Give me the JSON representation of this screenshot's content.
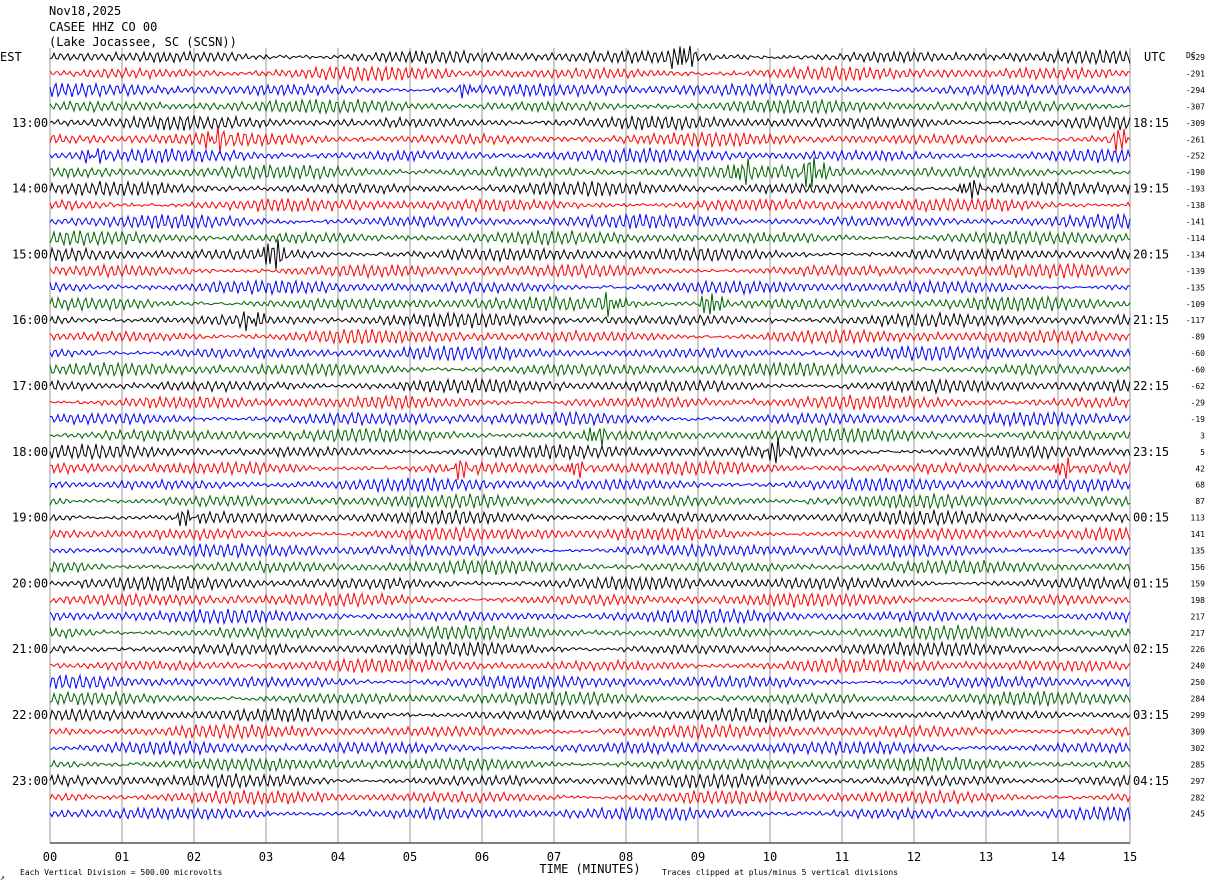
{
  "header": {
    "date": "Nov18,2025",
    "station": "CASEE HHZ CO 00",
    "location": "(Lake Jocassee, SC (SCSN))"
  },
  "left_zone": "EST",
  "right_zone": "UTC",
  "dc_label": "DC",
  "footer": {
    "scale_note": "Each Vertical Division =  500.00 microvolts",
    "clip_note": "Traces clipped at plus/minus 5 vertical divisions",
    "corner_mark": "↗"
  },
  "colors": {
    "cycle": [
      "#000000",
      "#ff0000",
      "#0000ff",
      "#006400"
    ],
    "grid": "#999999",
    "background": "#ffffff"
  },
  "chart_data": {
    "type": "line",
    "subtype": "helicorder",
    "xlabel": "TIME (MINUTES)",
    "xlim": [
      0,
      15
    ],
    "x_ticks": [
      "00",
      "01",
      "02",
      "03",
      "04",
      "05",
      "06",
      "07",
      "08",
      "09",
      "10",
      "11",
      "12",
      "13",
      "14",
      "15"
    ],
    "lines_per_hour": 4,
    "minutes_per_line": 15,
    "left_hour_labels": [
      "13:00",
      "14:00",
      "15:00",
      "16:00",
      "17:00",
      "18:00",
      "19:00",
      "20:00",
      "21:00",
      "22:00",
      "23:00"
    ],
    "right_hour_labels": [
      "18:15",
      "19:15",
      "20:15",
      "21:15",
      "22:15",
      "23:15",
      "00:15",
      "01:15",
      "02:15",
      "03:15",
      "04:15"
    ],
    "first_labeled_line": 4,
    "dc_offsets": [
      -329,
      -291,
      -294,
      -307,
      -309,
      -261,
      -252,
      -190,
      -193,
      -138,
      -141,
      -114,
      -134,
      -139,
      -135,
      -109,
      -117,
      -89,
      -60,
      -60,
      -62,
      -29,
      -19,
      3,
      5,
      42,
      68,
      87,
      113,
      141,
      135,
      156,
      159,
      198,
      217,
      217,
      226,
      240,
      250,
      284,
      299,
      309,
      302,
      285,
      297,
      282,
      245
    ],
    "events": [
      {
        "line": 0,
        "minute": 8.7,
        "amp": 2.2
      },
      {
        "line": 2,
        "minute": 5.7,
        "amp": 1.1
      },
      {
        "line": 5,
        "minute": 2.2,
        "amp": 1.8
      },
      {
        "line": 5,
        "minute": 14.8,
        "amp": 1.8
      },
      {
        "line": 6,
        "minute": 0.5,
        "amp": 1.1
      },
      {
        "line": 7,
        "minute": 9.5,
        "amp": 1.8
      },
      {
        "line": 7,
        "minute": 10.5,
        "amp": 3.0
      },
      {
        "line": 8,
        "minute": 12.7,
        "amp": 1.6
      },
      {
        "line": 12,
        "minute": 3.0,
        "amp": 2.8
      },
      {
        "line": 15,
        "minute": 7.7,
        "amp": 1.7
      },
      {
        "line": 15,
        "minute": 9.1,
        "amp": 2.1
      },
      {
        "line": 16,
        "minute": 2.7,
        "amp": 1.4
      },
      {
        "line": 23,
        "minute": 7.5,
        "amp": 1.5
      },
      {
        "line": 24,
        "minute": 10.0,
        "amp": 1.6
      },
      {
        "line": 25,
        "minute": 5.6,
        "amp": 1.4
      },
      {
        "line": 25,
        "minute": 7.2,
        "amp": 1.4
      },
      {
        "line": 25,
        "minute": 14.0,
        "amp": 1.6
      },
      {
        "line": 28,
        "minute": 1.8,
        "amp": 1.3
      }
    ]
  }
}
